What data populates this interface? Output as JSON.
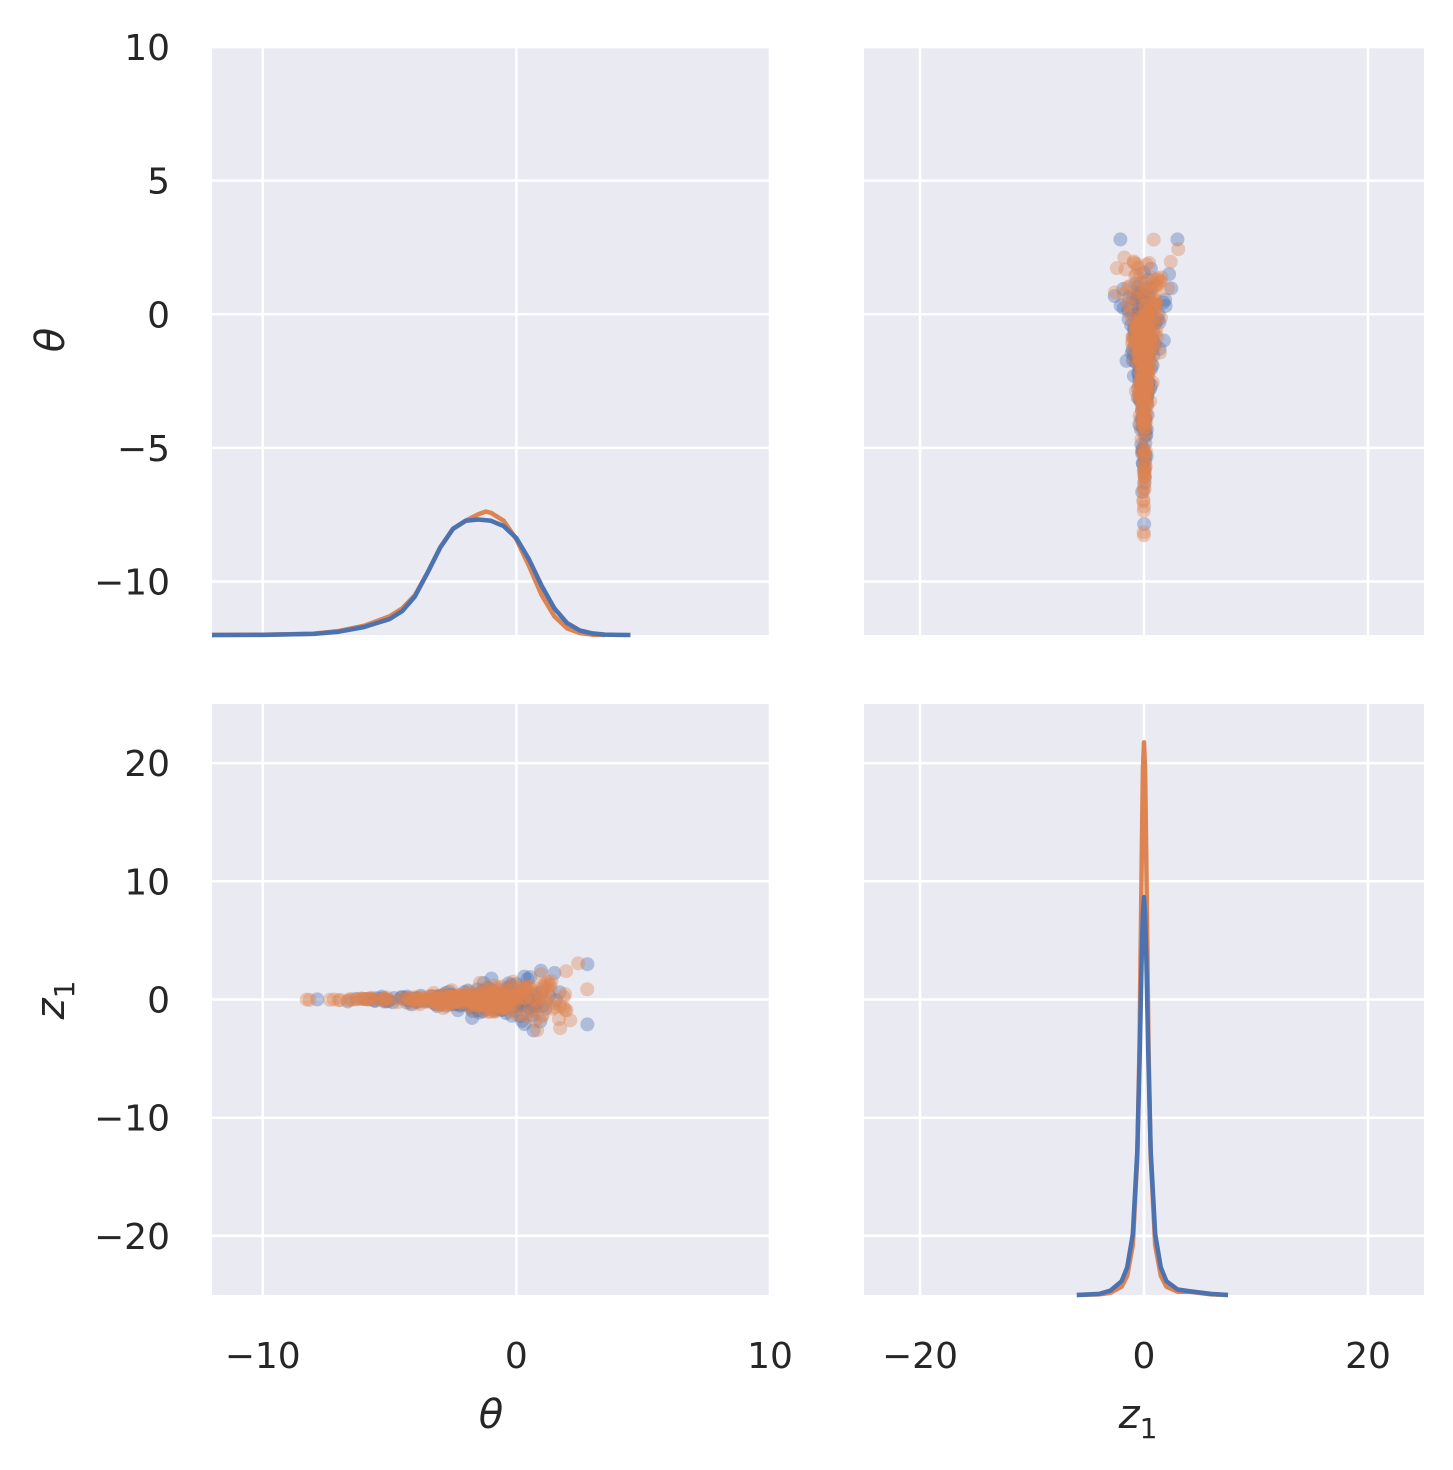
{
  "colors": {
    "panel_bg": "#eaeaf2",
    "grid": "#ffffff",
    "series_blue": "#4c72b0",
    "series_orange": "#dd8452",
    "text": "#262626"
  },
  "variables": {
    "theta": {
      "label": "θ",
      "sub": ""
    },
    "z1": {
      "label": "z",
      "sub": "1"
    }
  },
  "chart_data": [
    {
      "type": "line",
      "panel": "theta-theta",
      "role": "density (kde) of θ",
      "xlim": [
        -12,
        10
      ],
      "grid": true,
      "xticks": [
        -10,
        0,
        10
      ],
      "series": [
        {
          "color": "#dd8452",
          "x": [
            -12,
            -10,
            -8,
            -7,
            -6,
            -5,
            -4.5,
            -4,
            -3.5,
            -3,
            -2.5,
            -2,
            -1.5,
            -1.2,
            -1,
            -0.5,
            0,
            0.5,
            1,
            1.5,
            2,
            2.5,
            3,
            3.5
          ],
          "y": [
            0,
            0.002,
            0.01,
            0.03,
            0.07,
            0.14,
            0.2,
            0.3,
            0.47,
            0.66,
            0.8,
            0.86,
            0.91,
            0.93,
            0.92,
            0.86,
            0.72,
            0.52,
            0.3,
            0.14,
            0.05,
            0.015,
            0.003,
            0
          ]
        },
        {
          "color": "#4c72b0",
          "x": [
            -12,
            -10,
            -8,
            -7,
            -6,
            -5,
            -4.5,
            -4,
            -3.5,
            -3,
            -2.5,
            -2,
            -1.5,
            -1,
            -0.5,
            0,
            0.5,
            1,
            1.5,
            2,
            2.5,
            3,
            3.5,
            4,
            4.5
          ],
          "y": [
            0,
            0.001,
            0.008,
            0.025,
            0.06,
            0.12,
            0.18,
            0.29,
            0.47,
            0.66,
            0.8,
            0.86,
            0.87,
            0.86,
            0.82,
            0.73,
            0.57,
            0.37,
            0.2,
            0.09,
            0.035,
            0.012,
            0.003,
            0.001,
            0
          ]
        }
      ]
    },
    {
      "type": "scatter",
      "panel": "z1-vs-theta (top-right)",
      "x_var": "z1",
      "y_var": "theta",
      "xlim": [
        -25,
        25
      ],
      "ylim": [
        -12,
        10
      ],
      "grid": true,
      "xticks": [
        -20,
        0,
        20
      ],
      "yticks": [
        -10,
        -5,
        0,
        5,
        10
      ]
    },
    {
      "type": "scatter",
      "panel": "theta-vs-z1 (bottom-left)",
      "x_var": "theta",
      "y_var": "z1",
      "xlim": [
        -12,
        10
      ],
      "ylim": [
        -25,
        25
      ],
      "grid": true,
      "xticks": [
        -10,
        0,
        10
      ],
      "yticks": [
        -20,
        -10,
        0,
        10,
        20
      ]
    },
    {
      "type": "line",
      "panel": "z1-z1",
      "role": "density (kde) of z1",
      "xlim": [
        -25,
        25
      ],
      "grid": true,
      "xticks": [
        -20,
        0,
        20
      ],
      "series": [
        {
          "color": "#dd8452",
          "x": [
            -6,
            -4,
            -3,
            -2,
            -1.5,
            -1,
            -0.6,
            -0.4,
            -0.2,
            -0.1,
            0,
            0.1,
            0.2,
            0.4,
            0.6,
            1,
            1.5,
            2,
            3,
            4,
            6,
            7.5
          ],
          "y": [
            0,
            0.001,
            0.004,
            0.015,
            0.035,
            0.09,
            0.25,
            0.45,
            0.8,
            0.95,
            1.0,
            0.95,
            0.8,
            0.45,
            0.25,
            0.09,
            0.035,
            0.015,
            0.006,
            0.006,
            0.001,
            0
          ]
        },
        {
          "color": "#4c72b0",
          "x": [
            -6,
            -4,
            -3,
            -2,
            -1.5,
            -1,
            -0.6,
            -0.4,
            -0.2,
            -0.1,
            0,
            0.1,
            0.2,
            0.4,
            0.6,
            1,
            1.5,
            2,
            3,
            4,
            6,
            7.5
          ],
          "y": [
            0,
            0.002,
            0.008,
            0.025,
            0.05,
            0.11,
            0.26,
            0.42,
            0.62,
            0.69,
            0.72,
            0.69,
            0.62,
            0.42,
            0.26,
            0.11,
            0.05,
            0.025,
            0.01,
            0.007,
            0.002,
            0
          ]
        }
      ]
    }
  ]
}
